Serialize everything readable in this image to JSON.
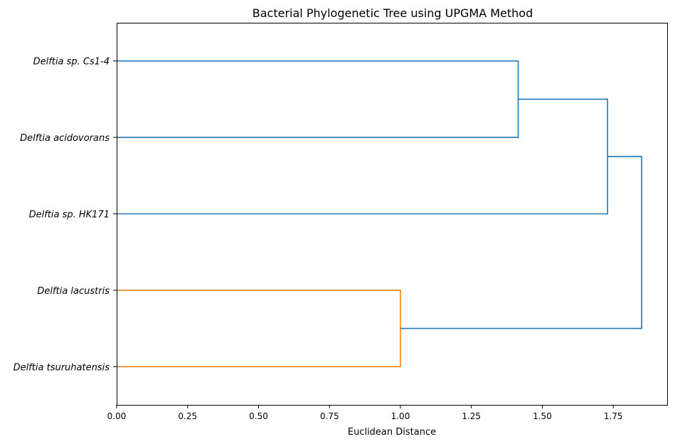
{
  "chart_data": {
    "type": "dendrogram",
    "title": "Bacterial Phylogenetic Tree using UPGMA Method",
    "xlabel": "Euclidean Distance",
    "ylabel": "",
    "xlim": [
      0,
      1.94
    ],
    "xticks": [
      "0.00",
      "0.25",
      "0.50",
      "0.75",
      "1.00",
      "1.25",
      "1.50",
      "1.75"
    ],
    "grid": false,
    "orientation": "leaves-left",
    "leaves": [
      "Delftia sp. Cs1-4",
      "Delftia acidovorans",
      "Delftia sp. HK171",
      "Delftia lacustris",
      "Delftia tsuruhatensis"
    ],
    "merges": [
      {
        "members": [
          "Delftia lacustris",
          "Delftia tsuruhatensis"
        ],
        "distance": 1.0,
        "color": "#ff7f0e"
      },
      {
        "members": [
          "Delftia sp. Cs1-4",
          "Delftia acidovorans"
        ],
        "distance": 1.415,
        "color": "#1f77b4"
      },
      {
        "members": [
          "Delftia sp. Cs1-4 + Delftia acidovorans",
          "Delftia sp. HK171"
        ],
        "distance": 1.73,
        "color": "#1f77b4"
      },
      {
        "members": [
          "Delftia sp. Cs1-4 + Delftia acidovorans + Delftia sp. HK171",
          "Delftia lacustris + Delftia tsuruhatensis"
        ],
        "distance": 1.85,
        "color": "#1f77b4"
      }
    ],
    "colors": {
      "cluster_a": "#1f77b4",
      "cluster_b": "#ff7f0e",
      "axes": "#000000"
    }
  }
}
